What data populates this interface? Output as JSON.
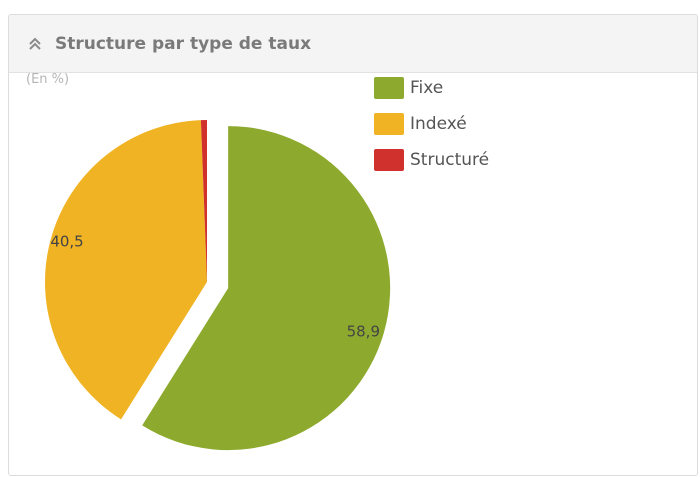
{
  "panel": {
    "title": "Structure par type de taux",
    "collapse_icon": "double-chevron-up-icon",
    "unit_label": "(En %)"
  },
  "colors": {
    "fixe": "#8eaa2e",
    "indexe": "#f0b323",
    "structure": "#d0312d"
  },
  "chart_data": {
    "type": "pie",
    "title": "Structure par type de taux",
    "unit": "(En %)",
    "categories": [
      "Fixe",
      "Indexé",
      "Structuré"
    ],
    "values": [
      58.9,
      40.5,
      0.6
    ],
    "data_labels": [
      "58,9",
      "40,5",
      ""
    ],
    "exploded": [
      true,
      false,
      false
    ],
    "legend_position": "right",
    "colors": [
      "#8eaa2e",
      "#f0b323",
      "#d0312d"
    ]
  }
}
